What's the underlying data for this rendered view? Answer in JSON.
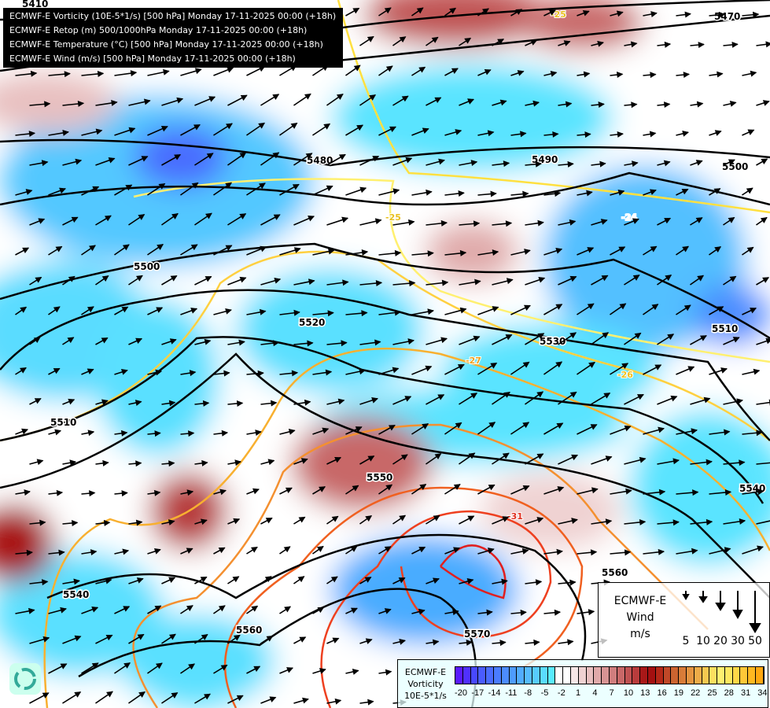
{
  "title_lines": [
    "ECMWF-E Vorticity (10E-5*1/s) [500 hPa] Monday 17-11-2025 00:00 (+18h)",
    "ECMWF-E Retop (m) 500/1000hPa Monday 17-11-2025 00:00 (+18h)",
    "ECMWF-E Temperature (°C) [500 hPa] Monday 17-11-2025 00:00 (+18h)",
    "ECMWF-E Wind (m/s) [500 hPa] Monday 17-11-2025 00:00 (+18h)"
  ],
  "geopotential_labels": [
    "5410",
    "5470",
    "5480",
    "5490",
    "5500",
    "5500",
    "5510",
    "5510",
    "5520",
    "5530",
    "5540",
    "5540",
    "5550",
    "5560",
    "5560",
    "5570"
  ],
  "temperature_labels": [
    "-25",
    "-24",
    "-25",
    "-27",
    "-26",
    "-31"
  ],
  "wind_legend": {
    "title": "ECMWF-E",
    "subtitle": "Wind",
    "unit": "m/s",
    "values": [
      "5",
      "10",
      "20",
      "30",
      "50"
    ]
  },
  "colorbar": {
    "title": "ECMWF-E",
    "subtitle": "Vorticity",
    "unit": "10E-5*1/s",
    "ticks": [
      "-20",
      "-17",
      "-14",
      "-11",
      "-8",
      "-5",
      "-2",
      "1",
      "4",
      "7",
      "10",
      "13",
      "16",
      "19",
      "22",
      "25",
      "28",
      "31",
      "34"
    ],
    "colors": [
      "#5a1aff",
      "#5030ff",
      "#4848ff",
      "#4a5cff",
      "#4a6cff",
      "#4a7cff",
      "#4c8cff",
      "#4e9cff",
      "#52acff",
      "#56bcff",
      "#58ccff",
      "#5adcff",
      "#5aecff",
      "#ffffff",
      "#ffffff",
      "#f6e6e6",
      "#efd2d2",
      "#e8c0c0",
      "#e0aaaa",
      "#d89494",
      "#d07e7e",
      "#c86868",
      "#c05252",
      "#b83c3c",
      "#a81818",
      "#a41010",
      "#b42818",
      "#c04828",
      "#cc6430",
      "#d87c38",
      "#e49440",
      "#eeac48",
      "#f6c850",
      "#fce060",
      "#fff070",
      "#ffe860",
      "#ffd848",
      "#ffc838",
      "#ffb820",
      "#ffa810"
    ]
  }
}
